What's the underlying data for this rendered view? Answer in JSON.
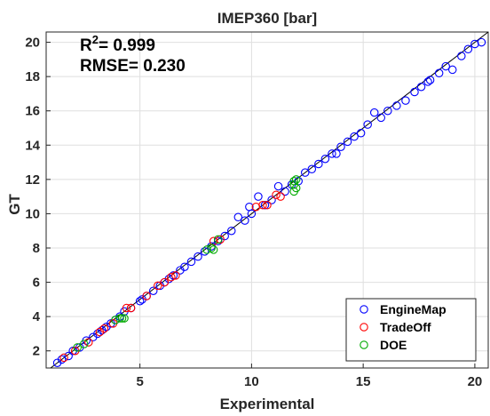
{
  "chart_data": {
    "type": "scatter",
    "title": "IMEP360 [bar]",
    "xlabel": "Experimental",
    "ylabel": "GT",
    "xlim": [
      0.8,
      20.6
    ],
    "ylim": [
      1.0,
      20.6
    ],
    "xticks": [
      5,
      10,
      15,
      20
    ],
    "yticks": [
      2,
      4,
      6,
      8,
      10,
      12,
      14,
      16,
      18,
      20
    ],
    "grid": true,
    "legend_position": "bottom-right",
    "annotations": {
      "r2_label": "R",
      "r2_sup": "2",
      "r2_value": "= 0.999",
      "rmse": "RMSE= 0.230"
    },
    "reference_line": {
      "x": [
        1.0,
        20.6
      ],
      "y": [
        1.0,
        20.6
      ],
      "color": "#000000"
    },
    "series": [
      {
        "name": "EngineMap",
        "color": "#0000ff",
        "points": [
          [
            1.3,
            1.3
          ],
          [
            1.5,
            1.5
          ],
          [
            1.8,
            1.7
          ],
          [
            2.0,
            2.0
          ],
          [
            2.3,
            2.2
          ],
          [
            2.6,
            2.6
          ],
          [
            2.9,
            2.8
          ],
          [
            3.1,
            3.0
          ],
          [
            3.3,
            3.2
          ],
          [
            3.5,
            3.4
          ],
          [
            3.7,
            3.6
          ],
          [
            3.9,
            3.8
          ],
          [
            4.1,
            4.0
          ],
          [
            4.3,
            4.3
          ],
          [
            4.6,
            4.5
          ],
          [
            5.0,
            4.9
          ],
          [
            5.3,
            5.2
          ],
          [
            5.6,
            5.5
          ],
          [
            5.9,
            5.8
          ],
          [
            6.1,
            6.0
          ],
          [
            6.3,
            6.2
          ],
          [
            6.5,
            6.4
          ],
          [
            6.8,
            6.7
          ],
          [
            7.0,
            6.9
          ],
          [
            7.3,
            7.2
          ],
          [
            7.6,
            7.5
          ],
          [
            7.9,
            7.8
          ],
          [
            8.2,
            8.1
          ],
          [
            8.5,
            8.4
          ],
          [
            8.8,
            8.7
          ],
          [
            9.1,
            9.0
          ],
          [
            9.4,
            9.8
          ],
          [
            9.7,
            9.6
          ],
          [
            10.0,
            10.0
          ],
          [
            10.3,
            11.0
          ],
          [
            10.6,
            10.5
          ],
          [
            10.9,
            10.8
          ],
          [
            11.2,
            11.6
          ],
          [
            11.5,
            11.3
          ],
          [
            11.8,
            11.7
          ],
          [
            12.1,
            11.9
          ],
          [
            12.4,
            12.4
          ],
          [
            12.7,
            12.6
          ],
          [
            13.0,
            12.9
          ],
          [
            13.3,
            13.2
          ],
          [
            13.6,
            13.5
          ],
          [
            14.0,
            13.9
          ],
          [
            14.3,
            14.2
          ],
          [
            14.6,
            14.5
          ],
          [
            14.9,
            14.7
          ],
          [
            15.2,
            15.2
          ],
          [
            15.5,
            15.9
          ],
          [
            15.8,
            15.6
          ],
          [
            16.1,
            16.0
          ],
          [
            16.5,
            16.3
          ],
          [
            16.9,
            16.6
          ],
          [
            17.3,
            17.1
          ],
          [
            17.6,
            17.4
          ],
          [
            18.0,
            17.8
          ],
          [
            18.4,
            18.2
          ],
          [
            18.7,
            18.6
          ],
          [
            19.0,
            18.4
          ],
          [
            19.4,
            19.2
          ],
          [
            19.7,
            19.6
          ],
          [
            20.0,
            19.9
          ],
          [
            20.3,
            20.0
          ],
          [
            17.9,
            17.7
          ],
          [
            13.8,
            13.5
          ],
          [
            9.9,
            10.4
          ],
          [
            5.1,
            5.0
          ]
        ]
      },
      {
        "name": "TradeOff",
        "color": "#ff0000",
        "points": [
          [
            1.6,
            1.6
          ],
          [
            2.1,
            2.0
          ],
          [
            2.7,
            2.5
          ],
          [
            3.2,
            3.1
          ],
          [
            3.4,
            3.3
          ],
          [
            3.8,
            3.6
          ],
          [
            4.4,
            4.5
          ],
          [
            4.6,
            4.5
          ],
          [
            5.3,
            5.2
          ],
          [
            5.8,
            5.8
          ],
          [
            6.1,
            6.0
          ],
          [
            6.4,
            6.3
          ],
          [
            6.6,
            6.4
          ],
          [
            8.3,
            8.4
          ],
          [
            8.6,
            8.5
          ],
          [
            10.2,
            10.4
          ],
          [
            10.5,
            10.5
          ],
          [
            10.7,
            10.5
          ],
          [
            11.1,
            11.1
          ],
          [
            11.3,
            11.0
          ]
        ]
      },
      {
        "name": "DOE",
        "color": "#00aa00",
        "points": [
          [
            2.2,
            2.2
          ],
          [
            2.5,
            2.4
          ],
          [
            3.9,
            3.8
          ],
          [
            4.1,
            3.9
          ],
          [
            4.2,
            3.9
          ],
          [
            4.3,
            3.9
          ],
          [
            8.0,
            7.9
          ],
          [
            8.2,
            8.0
          ],
          [
            8.3,
            7.9
          ],
          [
            8.5,
            8.5
          ],
          [
            11.9,
            11.3
          ],
          [
            11.9,
            11.7
          ],
          [
            11.9,
            11.9
          ],
          [
            12.0,
            11.5
          ],
          [
            12.0,
            12.0
          ]
        ]
      }
    ]
  }
}
